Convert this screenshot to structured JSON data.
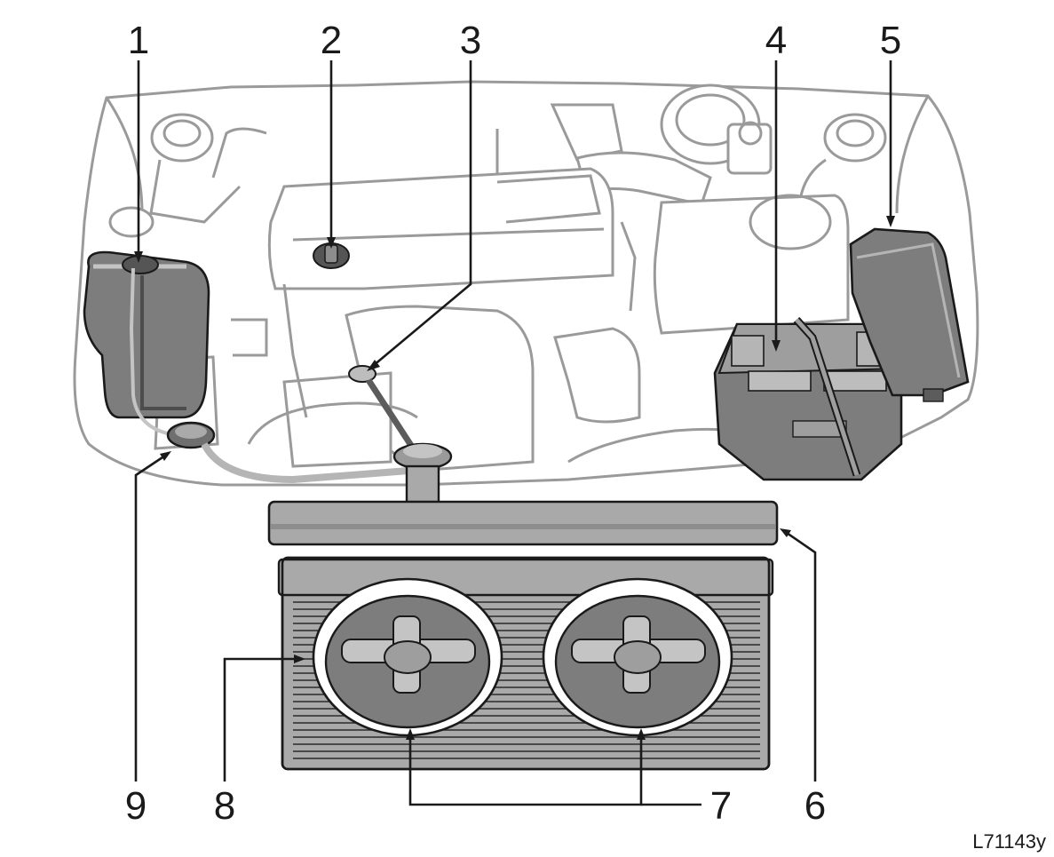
{
  "figure": {
    "code": "L71143y",
    "callouts": [
      {
        "id": "1",
        "label": "1"
      },
      {
        "id": "2",
        "label": "2"
      },
      {
        "id": "3",
        "label": "3"
      },
      {
        "id": "4",
        "label": "4"
      },
      {
        "id": "5",
        "label": "5"
      },
      {
        "id": "6",
        "label": "6"
      },
      {
        "id": "7",
        "label": "7"
      },
      {
        "id": "8",
        "label": "8"
      },
      {
        "id": "9",
        "label": "9"
      }
    ]
  },
  "colors": {
    "outline": "#1a1a1a",
    "engine_line": "#9a9a9a",
    "component_fill": "#7d7d7d",
    "component_light": "#c4c4c4",
    "radiator_fill": "#a9a9a9",
    "background": "#ffffff"
  },
  "icons": {
    "washer_tank": "reservoir-icon",
    "oil_cap": "cap-icon",
    "dipstick": "dipstick-icon",
    "battery": "battery-icon",
    "fuse_box": "fuse-box-icon",
    "radiator": "radiator-icon",
    "fan": "fan-icon"
  }
}
